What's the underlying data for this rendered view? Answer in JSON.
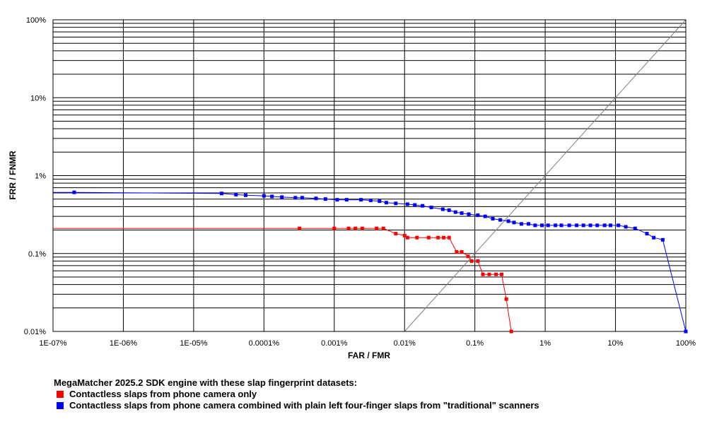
{
  "chart_data": {
    "type": "line",
    "x_scale": "log",
    "y_scale": "log",
    "xlim": [
      1e-09,
      1
    ],
    "ylim": [
      0.0001,
      1
    ],
    "x_ticks": [
      {
        "value": 1e-09,
        "label": "1E-07%"
      },
      {
        "value": 1e-08,
        "label": "1E-06%"
      },
      {
        "value": 1e-07,
        "label": "1E-05%"
      },
      {
        "value": 1e-06,
        "label": "0.0001%"
      },
      {
        "value": 1e-05,
        "label": "0.001%"
      },
      {
        "value": 0.0001,
        "label": "0.01%"
      },
      {
        "value": 0.001,
        "label": "0.1%"
      },
      {
        "value": 0.01,
        "label": "1%"
      },
      {
        "value": 0.1,
        "label": "10%"
      },
      {
        "value": 1,
        "label": "100%"
      }
    ],
    "y_ticks": [
      {
        "value": 1,
        "label": "100%"
      },
      {
        "value": 0.1,
        "label": "10%"
      },
      {
        "value": 0.01,
        "label": "1%"
      },
      {
        "value": 0.001,
        "label": "0.1%"
      },
      {
        "value": 0.0001,
        "label": "0.01%"
      }
    ],
    "xlabel": "FAR / FMR",
    "ylabel": "FRR / FNMR",
    "grid": true,
    "diagonal_reference": true,
    "series": [
      {
        "name": "Contactless slaps from phone camera only",
        "color": "#ff0000",
        "points": [
          [
            1e-09,
            0.0021
          ],
          [
            3.2e-06,
            0.0021
          ],
          [
            1e-05,
            0.0021
          ],
          [
            1.6e-05,
            0.0021
          ],
          [
            2e-05,
            0.0021
          ],
          [
            2.5e-05,
            0.0021
          ],
          [
            4e-05,
            0.0021
          ],
          [
            5e-05,
            0.0021
          ],
          [
            7.5e-05,
            0.0018
          ],
          [
            0.0001,
            0.0017
          ],
          [
            0.00011,
            0.0016
          ],
          [
            0.00015,
            0.0016
          ],
          [
            0.00022,
            0.0016
          ],
          [
            0.0003,
            0.0016
          ],
          [
            0.00036,
            0.0016
          ],
          [
            0.00043,
            0.0016
          ],
          [
            0.00055,
            0.00105
          ],
          [
            0.00065,
            0.00105
          ],
          [
            0.0008,
            0.00092
          ],
          [
            0.0009,
            0.0008
          ],
          [
            0.0011,
            0.0008
          ],
          [
            0.0013,
            0.00054
          ],
          [
            0.0016,
            0.00054
          ],
          [
            0.002,
            0.00054
          ],
          [
            0.0024,
            0.00054
          ],
          [
            0.0028,
            0.00026
          ],
          [
            0.0033,
            0.0001
          ]
        ]
      },
      {
        "name": "Contactless slaps from phone camera combined with plain left four-finger slaps from \"traditional\" scanners",
        "color": "#0000ff",
        "points": [
          [
            1e-09,
            0.0061
          ],
          [
            2e-09,
            0.0061
          ],
          [
            2.5e-07,
            0.0059
          ],
          [
            4e-07,
            0.0057
          ],
          [
            5.5e-07,
            0.0056
          ],
          [
            1e-06,
            0.0055
          ],
          [
            1.3e-06,
            0.0054
          ],
          [
            1.8e-06,
            0.0053
          ],
          [
            2.8e-06,
            0.0052
          ],
          [
            3.5e-06,
            0.0052
          ],
          [
            5.5e-06,
            0.0051
          ],
          [
            7.5e-06,
            0.005
          ],
          [
            1.1e-05,
            0.0049
          ],
          [
            1.5e-05,
            0.0049
          ],
          [
            2.4e-05,
            0.0049
          ],
          [
            3.3e-05,
            0.0048
          ],
          [
            4.4e-05,
            0.0047
          ],
          [
            5.5e-05,
            0.0045
          ],
          [
            7.5e-05,
            0.0044
          ],
          [
            0.00011,
            0.0043
          ],
          [
            0.00014,
            0.0042
          ],
          [
            0.00018,
            0.0041
          ],
          [
            0.00024,
            0.0039
          ],
          [
            0.00035,
            0.0037
          ],
          [
            0.00043,
            0.0036
          ],
          [
            0.00053,
            0.0034
          ],
          [
            0.00065,
            0.0033
          ],
          [
            0.00082,
            0.0032
          ],
          [
            0.0011,
            0.0031
          ],
          [
            0.0014,
            0.003
          ],
          [
            0.0018,
            0.0028
          ],
          [
            0.0023,
            0.0027
          ],
          [
            0.003,
            0.0026
          ],
          [
            0.0036,
            0.0025
          ],
          [
            0.0046,
            0.0024
          ],
          [
            0.0058,
            0.0024
          ],
          [
            0.0072,
            0.0023
          ],
          [
            0.009,
            0.0023
          ],
          [
            0.011,
            0.0023
          ],
          [
            0.014,
            0.0023
          ],
          [
            0.017,
            0.0023
          ],
          [
            0.022,
            0.0023
          ],
          [
            0.028,
            0.0023
          ],
          [
            0.035,
            0.0023
          ],
          [
            0.044,
            0.0023
          ],
          [
            0.055,
            0.0023
          ],
          [
            0.07,
            0.0023
          ],
          [
            0.085,
            0.0023
          ],
          [
            0.11,
            0.0023
          ],
          [
            0.14,
            0.0022
          ],
          [
            0.19,
            0.0021
          ],
          [
            0.28,
            0.0018
          ],
          [
            0.35,
            0.0016
          ],
          [
            0.47,
            0.0015
          ],
          [
            1,
            0.0001
          ]
        ]
      }
    ]
  },
  "legend": {
    "title": "MegaMatcher 2025.2 SDK engine with these slap fingerprint datasets:",
    "items": [
      {
        "label": "Contactless slaps from phone camera only",
        "color": "#ff0000"
      },
      {
        "label": "Contactless slaps from phone camera combined with plain left four-finger slaps from \"traditional\" scanners",
        "color": "#0000ff"
      }
    ]
  }
}
